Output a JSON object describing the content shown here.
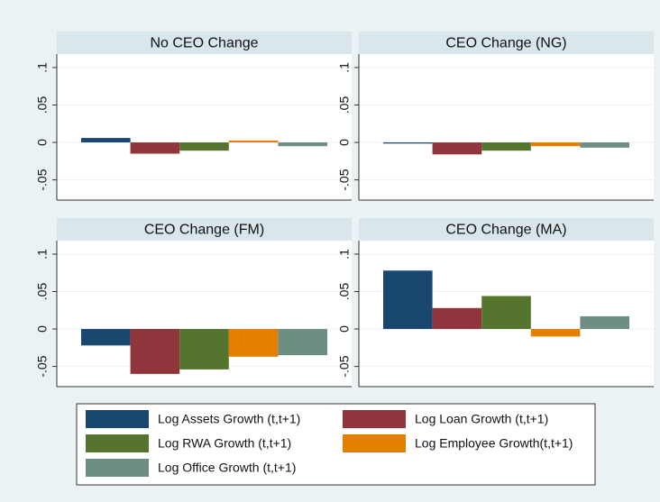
{
  "chart_data": {
    "type": "bar",
    "categories": [
      "No CEO Change",
      "CEO Change (NG)",
      "CEO Change (FM)",
      "CEO Change (MA)"
    ],
    "series": [
      {
        "name": "Log Assets Growth (t,t+1)",
        "color": "#1a476f",
        "values": [
          0.006,
          -0.0015,
          -0.022,
          0.078
        ]
      },
      {
        "name": "Log Loan Growth (t,t+1)",
        "color": "#90353b",
        "values": [
          -0.015,
          -0.016,
          -0.06,
          0.028
        ]
      },
      {
        "name": "Log RWA Growth (t,t+1)",
        "color": "#55752f",
        "values": [
          -0.011,
          -0.011,
          -0.054,
          0.044
        ]
      },
      {
        "name": "Log Employee Growth(t,t+1)",
        "color": "#e37e00",
        "values": [
          0.0025,
          -0.005,
          -0.037,
          -0.01
        ]
      },
      {
        "name": "Log Office Growth (t,t+1)",
        "color": "#6e8e84",
        "values": [
          -0.005,
          -0.007,
          -0.035,
          0.017
        ]
      }
    ],
    "ylim": [
      -0.077,
      0.118
    ],
    "yticks": [
      {
        "value": -0.05,
        "label": "-.05"
      },
      0,
      {
        "value": 0.05,
        "label": ".05"
      },
      {
        "value": 0.1,
        "label": ".1"
      }
    ],
    "grid": true
  }
}
